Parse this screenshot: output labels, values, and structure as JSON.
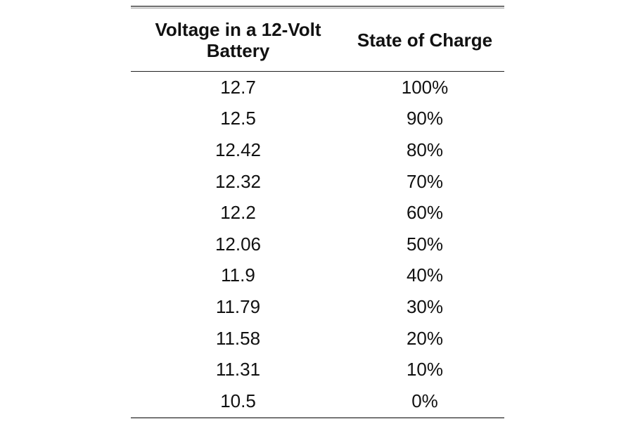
{
  "table": {
    "headers": {
      "voltage_line1": "Voltage in a 12-Volt",
      "voltage_line2": "Battery",
      "state_of_charge": "State of Charge"
    },
    "rows": [
      {
        "voltage": "12.7",
        "soc": "100%"
      },
      {
        "voltage": "12.5",
        "soc": "90%"
      },
      {
        "voltage": "12.42",
        "soc": "80%"
      },
      {
        "voltage": "12.32",
        "soc": "70%"
      },
      {
        "voltage": "12.2",
        "soc": "60%"
      },
      {
        "voltage": "12.06",
        "soc": "50%"
      },
      {
        "voltage": "11.9",
        "soc": "40%"
      },
      {
        "voltage": "11.79",
        "soc": "30%"
      },
      {
        "voltage": "11.58",
        "soc": "20%"
      },
      {
        "voltage": "11.31",
        "soc": "10%"
      },
      {
        "voltage": "10.5",
        "soc": "0%"
      }
    ]
  },
  "colors": {
    "text": "#111111",
    "rule": "#222222",
    "outer_rule": "#6e6e6e",
    "background": "#ffffff"
  }
}
